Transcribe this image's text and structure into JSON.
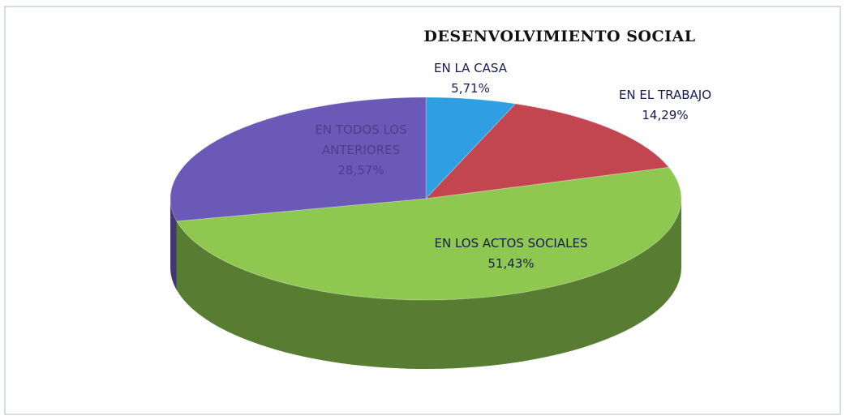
{
  "chart_data": {
    "type": "pie",
    "title": "DESENVOLVIMIENTO SOCIAL",
    "categories": [
      "EN LA CASA",
      "EN EL TRABAJO",
      "EN LOS ACTOS SOCIALES",
      "EN TODOS LOS ANTERIORES"
    ],
    "values": [
      5.71,
      14.29,
      51.43,
      28.57
    ],
    "value_labels": [
      "5,71%",
      "14,29%",
      "51,43%",
      "28,57%"
    ],
    "colors": [
      "#2f9fe2",
      "#c2454f",
      "#8ec851",
      "#6a59b6"
    ]
  }
}
